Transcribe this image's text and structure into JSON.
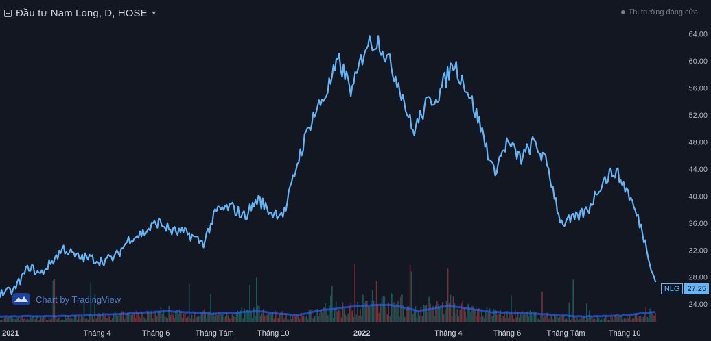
{
  "header": {
    "title": "Đầu tư Nam Long, D, HOSE"
  },
  "market_status": "Thị trường đóng cửa",
  "watermark": "Chart by TradingView",
  "price_tag": {
    "symbol": "NLG",
    "value": "27.25"
  },
  "colors": {
    "background": "#131722",
    "price_line": "#64b5f6",
    "volume_up": "#26a69a",
    "volume_down": "#ef5350",
    "volume_ma": "#2962ff"
  },
  "chart_data": {
    "type": "line",
    "title": "Đầu tư Nam Long, D, HOSE",
    "ylim": [
      22.6,
      66
    ],
    "y_ticks": [
      "64.00",
      "60.00",
      "56.00",
      "52.00",
      "48.00",
      "44.00",
      "40.00",
      "36.00",
      "32.00",
      "28.00",
      "24.00"
    ],
    "x_ticks": [
      {
        "label": "2021",
        "bold": true
      },
      {
        "label": "Tháng 4",
        "bold": false
      },
      {
        "label": "Tháng 6",
        "bold": false
      },
      {
        "label": "Tháng Tám",
        "bold": false
      },
      {
        "label": "Tháng 10",
        "bold": false
      },
      {
        "label": "2022",
        "bold": true
      },
      {
        "label": "Tháng 4",
        "bold": false
      },
      {
        "label": "Tháng 6",
        "bold": false
      },
      {
        "label": "Tháng Tám",
        "bold": false
      },
      {
        "label": "Tháng 10",
        "bold": false
      }
    ],
    "series": [
      {
        "x": [
          "2020-12-21",
          "2021-01-04",
          "2021-01-20",
          "2021-02-01",
          "2021-02-25",
          "2021-03-10",
          "2021-03-25",
          "2021-04-06",
          "2021-04-20",
          "2021-05-05",
          "2021-05-20",
          "2021-06-03",
          "2021-06-18",
          "2021-07-05",
          "2021-07-20",
          "2021-08-03",
          "2021-08-18",
          "2021-09-01",
          "2021-09-15",
          "2021-09-29",
          "2021-10-13",
          "2021-10-27",
          "2021-11-10",
          "2021-11-24",
          "2021-12-08",
          "2021-12-22",
          "2022-01-05",
          "2022-01-19",
          "2022-02-09",
          "2022-02-23",
          "2022-03-09",
          "2022-03-23",
          "2022-04-06",
          "2022-04-20",
          "2022-05-04",
          "2022-05-18",
          "2022-06-01",
          "2022-06-15",
          "2022-06-29",
          "2022-07-13",
          "2022-07-27",
          "2022-08-10",
          "2022-08-24",
          "2022-09-07",
          "2022-09-21",
          "2022-10-05",
          "2022-10-19",
          "2022-11-02"
        ],
        "y": [
          25.6,
          26.0,
          29.6,
          28.4,
          32.3,
          31.0,
          30.8,
          30.4,
          31.0,
          33.8,
          34.6,
          36.2,
          34.8,
          34.4,
          33.0,
          37.8,
          38.4,
          37.0,
          39.6,
          37.5,
          37.6,
          45.5,
          51.5,
          55.0,
          60.0,
          55.5,
          62.5,
          63.0,
          56.5,
          49.5,
          53.5,
          55.4,
          59.8,
          56.0,
          50.5,
          43.5,
          48.0,
          45.5,
          48.0,
          44.5,
          36.0,
          36.6,
          38.0,
          42.0,
          43.8,
          40.5,
          35.0,
          27.25
        ]
      }
    ],
    "volume_series": [
      {
        "name": "volume_ma",
        "x": [
          "2020-12-21",
          "2021-03-01",
          "2021-05-01",
          "2021-06-15",
          "2021-08-01",
          "2021-09-15",
          "2021-10-25",
          "2021-11-20",
          "2021-12-31",
          "2022-01-31",
          "2022-03-01",
          "2022-04-01",
          "2022-05-15",
          "2022-07-01",
          "2022-08-15",
          "2022-10-01",
          "2022-10-31"
        ],
        "y": [
          0.15,
          0.18,
          0.3,
          0.45,
          0.3,
          0.45,
          0.2,
          0.5,
          0.75,
          0.8,
          0.45,
          0.75,
          0.4,
          0.3,
          0.15,
          0.2,
          0.4
        ]
      }
    ]
  }
}
